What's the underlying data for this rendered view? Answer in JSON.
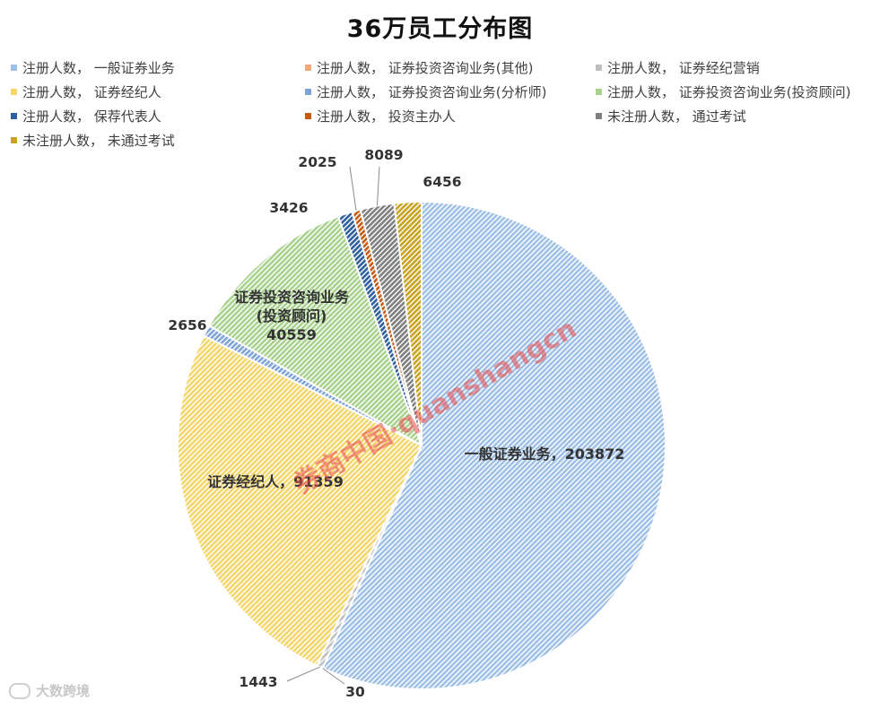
{
  "chart_data": {
    "type": "pie",
    "title": "36万员工分布图",
    "legend_position": "top",
    "slices": [
      {
        "legend": "注册人数， 一般证券业务",
        "label": "一般证券业务，203872",
        "value": 203872,
        "color": "#9fc0e6"
      },
      {
        "legend": "注册人数， 证券投资咨询业务(其他)",
        "label": "30",
        "value": 30,
        "color": "#f4a877"
      },
      {
        "legend": "注册人数， 证券经纪营销",
        "label": "1443",
        "value": 1443,
        "color": "#bfbfbf"
      },
      {
        "legend": "注册人数， 证券经纪人",
        "label": "证券经纪人，91359",
        "value": 91359,
        "color": "#f5d66b"
      },
      {
        "legend": "注册人数， 证券投资咨询业务(分析师)",
        "label": "2656",
        "value": 2656,
        "color": "#7ea3d6"
      },
      {
        "legend": "注册人数， 证券投资咨询业务(投资顾问)",
        "label": "证券投资咨询业务 (投资顾问) 40559",
        "label_lines": [
          "证券投资咨询业务",
          "(投资顾问)",
          "40559"
        ],
        "value": 40559,
        "color": "#a9d18e"
      },
      {
        "legend": "注册人数， 保荐代表人",
        "label": "3426",
        "value": 3426,
        "color": "#2e5f9e"
      },
      {
        "legend": "注册人数， 投资主办人",
        "label": "2025",
        "value": 2025,
        "color": "#c55a11"
      },
      {
        "legend": "未注册人数， 通过考试",
        "label": "8089",
        "value": 8089,
        "color": "#7f7f7f"
      },
      {
        "legend": "未注册人数， 未通过考试",
        "label": "6456",
        "value": 6456,
        "color": "#c9a21f"
      }
    ]
  },
  "watermark": "券商中国·quanshangcn",
  "source_logo": "大数跨境"
}
